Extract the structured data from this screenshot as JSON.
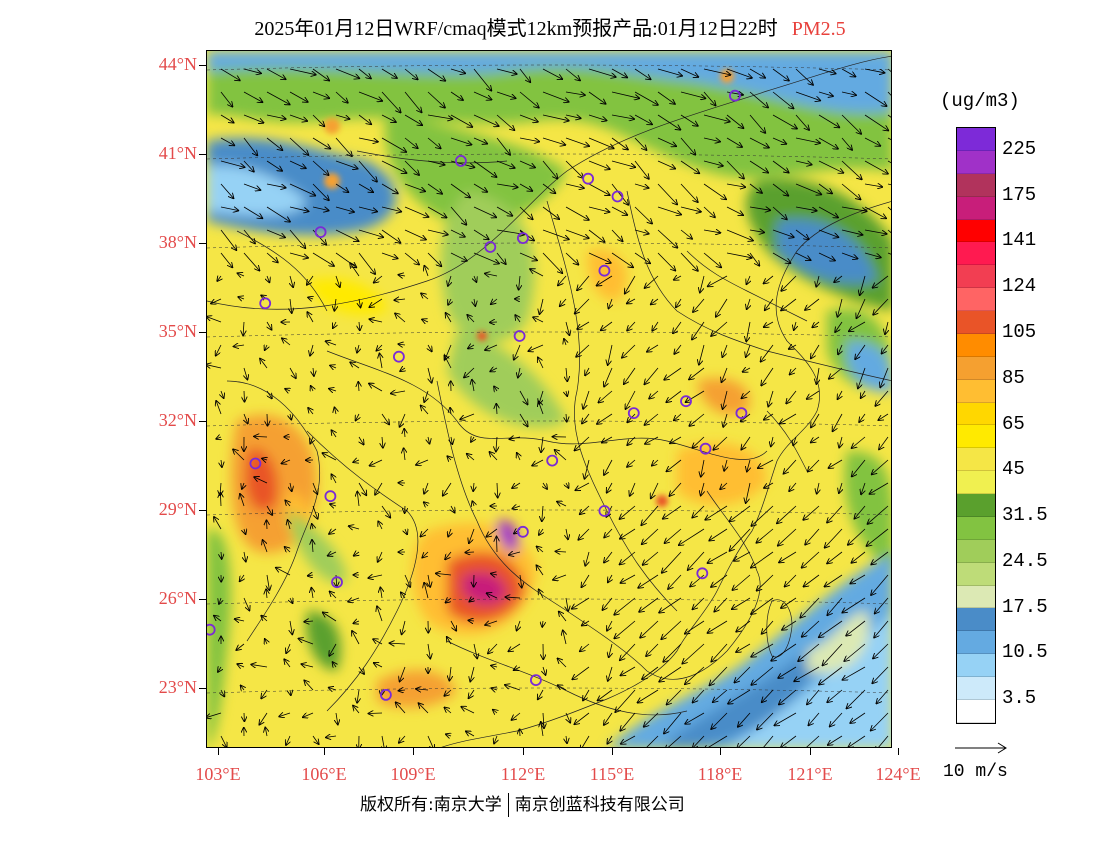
{
  "title": {
    "main": "2025年01月12日WRF/cmaq模式12km预报产品:01月12日22时",
    "pollutant": "PM2.5",
    "pollutant_color": "#e8413c"
  },
  "map": {
    "lat_labels": [
      "44°N",
      "41°N",
      "38°N",
      "35°N",
      "32°N",
      "29°N",
      "26°N",
      "23°N"
    ],
    "lon_labels": [
      "103°E",
      "106°E",
      "109°E",
      "112°E",
      "115°E",
      "118°E",
      "121°E",
      "124°E"
    ],
    "label_color": "#e34a4a",
    "vector_color": "#000000",
    "station_marker_color": "#7a2ad6"
  },
  "colorbar": {
    "unit": "(ug/m3)",
    "segments": [
      {
        "color": "#7d2ad8"
      },
      {
        "color": "#a031c8"
      },
      {
        "color": "#b1335c"
      },
      {
        "color": "#c81e7a"
      },
      {
        "color": "#ff0000"
      },
      {
        "color": "#ff1a50"
      },
      {
        "color": "#f23e52"
      },
      {
        "color": "#ff6464"
      },
      {
        "color": "#e95428"
      },
      {
        "color": "#ff8c00"
      },
      {
        "color": "#f5a030"
      },
      {
        "color": "#ffbe32"
      },
      {
        "color": "#ffd700"
      },
      {
        "color": "#ffea00"
      },
      {
        "color": "#f5e646"
      },
      {
        "color": "#f0f050"
      },
      {
        "color": "#5aa02d"
      },
      {
        "color": "#82c341"
      },
      {
        "color": "#a0cd5a"
      },
      {
        "color": "#bedc78"
      },
      {
        "color": "#dce9b4"
      },
      {
        "color": "#4a8cc8"
      },
      {
        "color": "#64aae1"
      },
      {
        "color": "#96d2f5"
      },
      {
        "color": "#cdeafa"
      },
      {
        "color": "#ffffff"
      }
    ],
    "labels": [
      "225",
      "175",
      "141",
      "124",
      "105",
      "85",
      "65",
      "45",
      "31.5",
      "24.5",
      "17.5",
      "10.5",
      "3.5"
    ]
  },
  "vector_reference": {
    "label": "10 m/s"
  },
  "footer": {
    "copyright": "版权所有:南京大学",
    "company": "南京创蓝科技有限公司"
  },
  "stations": [
    {
      "lat": 43.0,
      "lon": 119.0
    },
    {
      "lat": 40.8,
      "lon": 110.6
    },
    {
      "lat": 40.2,
      "lon": 114.5
    },
    {
      "lat": 39.6,
      "lon": 115.4
    },
    {
      "lat": 38.4,
      "lon": 106.3
    },
    {
      "lat": 38.2,
      "lon": 112.5
    },
    {
      "lat": 37.9,
      "lon": 111.5
    },
    {
      "lat": 37.1,
      "lon": 115.0
    },
    {
      "lat": 36.0,
      "lon": 104.6
    },
    {
      "lat": 34.9,
      "lon": 112.4
    },
    {
      "lat": 34.2,
      "lon": 108.7
    },
    {
      "lat": 32.7,
      "lon": 117.5
    },
    {
      "lat": 32.3,
      "lon": 115.9
    },
    {
      "lat": 32.3,
      "lon": 119.2
    },
    {
      "lat": 31.1,
      "lon": 118.1
    },
    {
      "lat": 30.6,
      "lon": 104.3
    },
    {
      "lat": 30.7,
      "lon": 113.4
    },
    {
      "lat": 29.5,
      "lon": 106.6
    },
    {
      "lat": 29.0,
      "lon": 115.0
    },
    {
      "lat": 28.3,
      "lon": 112.5
    },
    {
      "lat": 26.6,
      "lon": 106.8
    },
    {
      "lat": 26.9,
      "lon": 118.0
    },
    {
      "lat": 25.0,
      "lon": 102.9
    },
    {
      "lat": 23.3,
      "lon": 112.9
    },
    {
      "lat": 22.8,
      "lon": 108.3
    }
  ]
}
